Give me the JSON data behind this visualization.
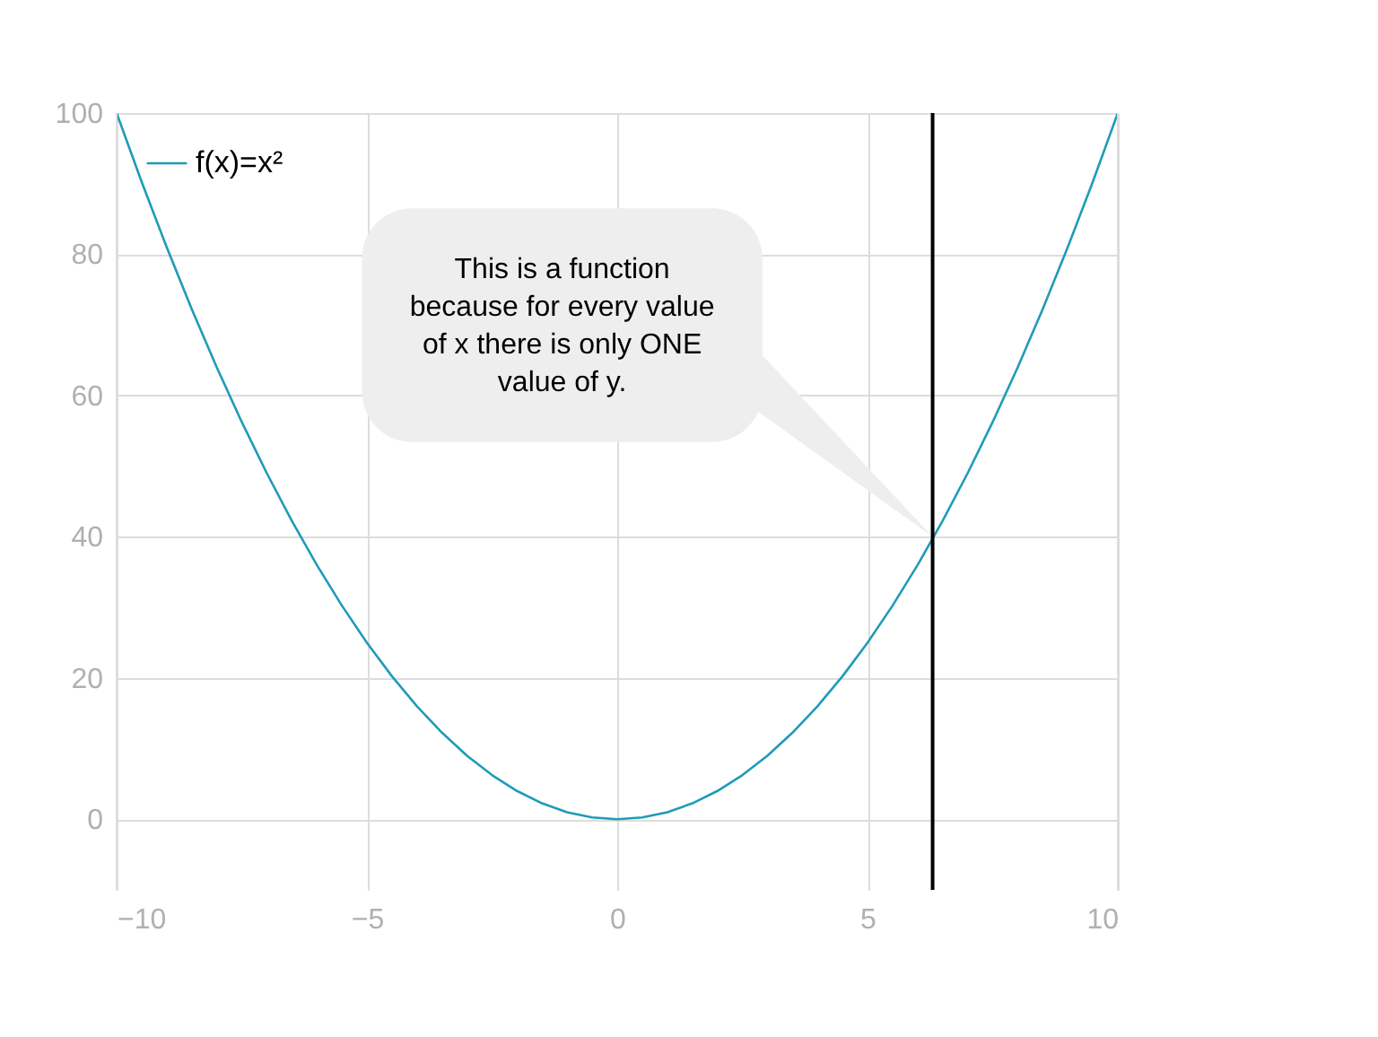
{
  "chart_data": {
    "type": "line",
    "x": [
      -10,
      -9.5,
      -9,
      -8.5,
      -8,
      -7.5,
      -7,
      -6.5,
      -6,
      -5.5,
      -5,
      -4.5,
      -4,
      -3.5,
      -3,
      -2.5,
      -2,
      -1.5,
      -1,
      -0.5,
      0,
      0.5,
      1,
      1.5,
      2,
      2.5,
      3,
      3.5,
      4,
      4.5,
      5,
      5.5,
      6,
      6.5,
      7,
      7.5,
      8,
      8.5,
      9,
      9.5,
      10
    ],
    "series": [
      {
        "name": "f(x)=x²",
        "color": "#1f9bb8",
        "values": [
          100,
          90.25,
          81,
          72.25,
          64,
          56.25,
          49,
          42.25,
          36,
          30.25,
          25,
          20.25,
          16,
          12.25,
          9,
          6.25,
          4,
          2.25,
          1,
          0.25,
          0,
          0.25,
          1,
          2.25,
          4,
          6.25,
          9,
          12.25,
          16,
          20.25,
          25,
          30.25,
          36,
          42.25,
          49,
          56.25,
          64,
          72.25,
          81,
          90.25,
          100
        ]
      }
    ],
    "xlim": [
      -10,
      10
    ],
    "xticks": [
      -10,
      -5,
      0,
      5,
      10
    ],
    "ylim": [
      -10,
      100
    ],
    "yticks": [
      0,
      20,
      40,
      60,
      80,
      100
    ],
    "grid": true,
    "legend": "top left",
    "line_style": "solid",
    "marker": "none",
    "ref_lines": [
      {
        "axis": "x",
        "value": 6.3,
        "color": "#000000"
      }
    ],
    "annotations": [
      "This is a function because for every value of x there is only ONE value of y."
    ]
  }
}
